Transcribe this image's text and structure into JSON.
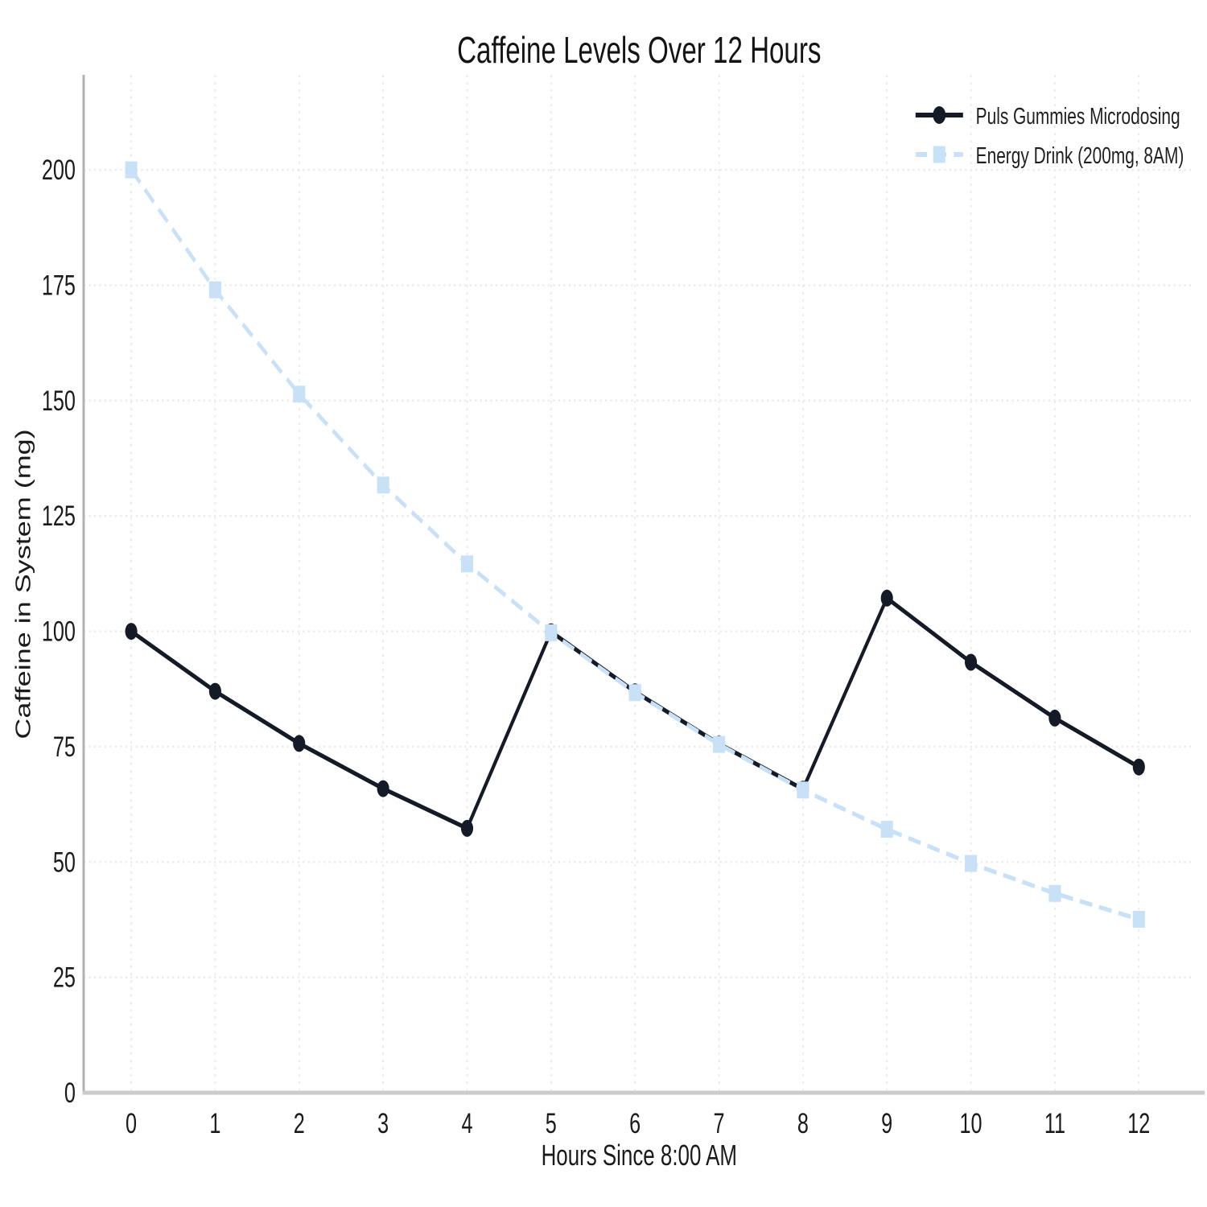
{
  "chart_data": {
    "type": "line",
    "title": "Caffeine Levels Over 12 Hours",
    "xlabel": "Hours Since 8:00 AM",
    "ylabel": "Caffeine in System (mg)",
    "x": [
      0,
      1,
      2,
      3,
      4,
      5,
      6,
      7,
      8,
      9,
      10,
      11,
      12
    ],
    "series": [
      {
        "name": "Puls Gummies Microdosing",
        "color": "#151b26",
        "line_style": "solid",
        "marker": "circle",
        "values": [
          100.0,
          87.0,
          75.7,
          65.9,
          57.3,
          99.9,
          86.9,
          75.6,
          65.8,
          107.2,
          93.3,
          81.2,
          70.6
        ]
      },
      {
        "name": "Energy Drink (200mg, 8AM)",
        "color": "#c9e1f6",
        "line_style": "dashed",
        "marker": "square",
        "values": [
          200.0,
          174.0,
          151.4,
          131.7,
          114.6,
          99.7,
          86.7,
          75.5,
          65.6,
          57.1,
          49.7,
          43.2,
          37.6
        ]
      }
    ],
    "xticks": [
      0,
      1,
      2,
      3,
      4,
      5,
      6,
      7,
      8,
      9,
      10,
      11,
      12
    ],
    "yticks": [
      0,
      25,
      50,
      75,
      100,
      125,
      150,
      175,
      200
    ],
    "xlim": [
      -0.566,
      12.66
    ],
    "ylim": [
      0,
      220.6
    ],
    "grid": true,
    "grid_style": "dotted",
    "legend_position": "upper right"
  }
}
